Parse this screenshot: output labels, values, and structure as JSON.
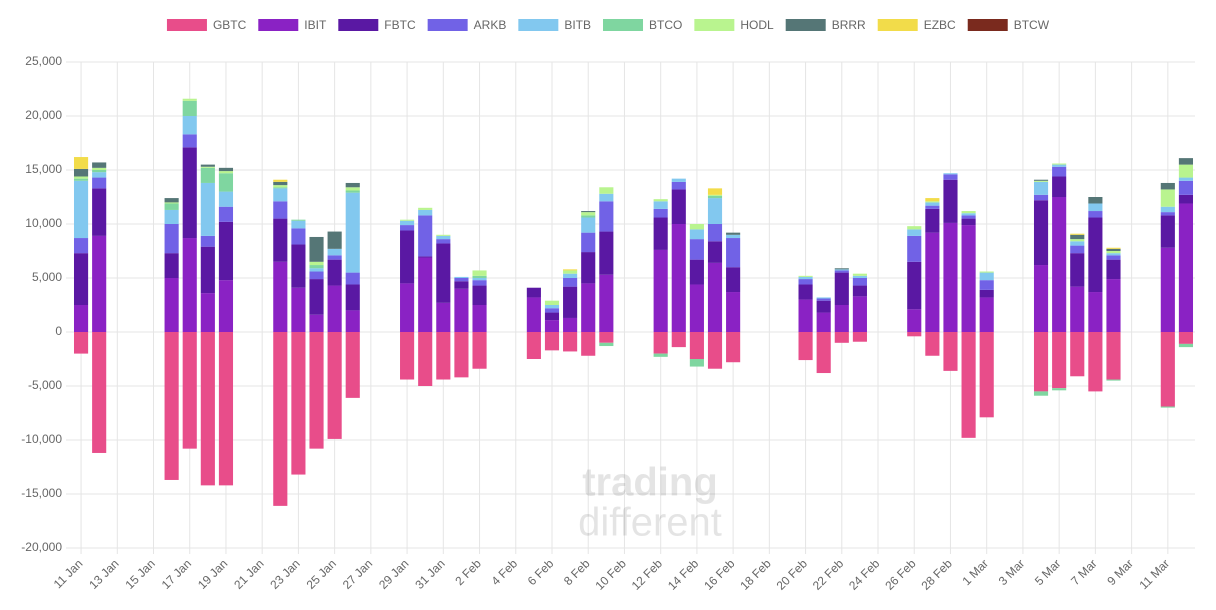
{
  "chart_data": {
    "type": "stacked-bar",
    "watermark": [
      "trading",
      "different"
    ],
    "categories": [
      "11 Jan",
      null,
      "13 Jan",
      null,
      "15 Jan",
      null,
      "17 Jan",
      null,
      "19 Jan",
      null,
      "21 Jan",
      null,
      "23 Jan",
      null,
      "25 Jan",
      null,
      "27 Jan",
      null,
      "29 Jan",
      null,
      "31 Jan",
      null,
      "2 Feb",
      null,
      "4 Feb",
      null,
      "6 Feb",
      null,
      "8 Feb",
      null,
      "10 Feb",
      null,
      "12 Feb",
      null,
      "14 Feb",
      null,
      "16 Feb",
      null,
      "18 Feb",
      null,
      "20 Feb",
      null,
      "22 Feb",
      null,
      "24 Feb",
      null,
      "26 Feb",
      null,
      "28 Feb",
      null,
      "1 Mar",
      null,
      "3 Mar",
      null,
      "5 Mar",
      null,
      "7 Mar",
      null,
      "9 Mar",
      null,
      "11 Mar",
      null
    ],
    "ylim": [
      -20000,
      25000
    ],
    "yticks": [
      {
        "value": -20000,
        "label": "-20,000"
      },
      {
        "value": -15000,
        "label": "-15,000"
      },
      {
        "value": -10000,
        "label": "-10,000"
      },
      {
        "value": -5000,
        "label": "-5,000"
      },
      0,
      {
        "value": 5000,
        "label": "5,000"
      },
      {
        "value": 10000,
        "label": "10,000"
      },
      {
        "value": 15000,
        "label": "15,000"
      },
      {
        "value": 20000,
        "label": "20,000"
      },
      {
        "value": 25000,
        "label": "25,000"
      }
    ],
    "grid": true,
    "legend": "top",
    "series": [
      {
        "name": "GBTC",
        "color": "#e84d8a",
        "values": [
          -2000,
          -11200,
          null,
          null,
          null,
          -13700,
          -10800,
          -14200,
          -14200,
          null,
          null,
          -16100,
          -13200,
          -10800,
          -9900,
          -6100,
          null,
          null,
          -4400,
          -5000,
          -4400,
          -4200,
          -3400,
          null,
          null,
          -2500,
          -1700,
          -1800,
          -2200,
          -1000,
          null,
          null,
          -2000,
          -1400,
          -2500,
          -3400,
          -2800,
          null,
          null,
          null,
          -2600,
          -3800,
          -1000,
          -900,
          null,
          null,
          -400,
          -2200,
          -3600,
          -9800,
          -7900,
          null,
          null,
          -5500,
          -5200,
          -4100,
          -5500,
          -4400,
          null,
          null,
          -6900,
          -1100
        ]
      },
      {
        "name": "IBIT",
        "color": "#8a22c4",
        "values": [
          2500,
          8900,
          null,
          null,
          null,
          5000,
          8700,
          3600,
          4800,
          null,
          null,
          6500,
          4100,
          1600,
          4300,
          2000,
          null,
          null,
          4500,
          6900,
          2700,
          4000,
          2500,
          null,
          null,
          3200,
          1100,
          1300,
          4500,
          5300,
          null,
          null,
          7600,
          10000,
          4400,
          6400,
          3700,
          null,
          null,
          null,
          3000,
          1800,
          2500,
          3300,
          null,
          null,
          2100,
          9200,
          10100,
          9900,
          3200,
          null,
          null,
          6200,
          12500,
          4200,
          3700,
          4900,
          null,
          null,
          7800,
          11900
        ]
      },
      {
        "name": "FBTC",
        "color": "#5a18a3",
        "values": [
          4800,
          4400,
          null,
          null,
          null,
          2300,
          8400,
          4300,
          5400,
          null,
          null,
          4000,
          4000,
          3300,
          2400,
          2400,
          null,
          null,
          4900,
          100,
          5500,
          700,
          1800,
          null,
          null,
          900,
          700,
          2900,
          2900,
          4000,
          null,
          null,
          3000,
          3200,
          2300,
          2000,
          2300,
          null,
          null,
          null,
          1400,
          1100,
          3000,
          1000,
          null,
          null,
          4400,
          2200,
          4000,
          600,
          700,
          null,
          null,
          6000,
          1900,
          3100,
          6900,
          1800,
          null,
          null,
          3000,
          800
        ]
      },
      {
        "name": "ARKB",
        "color": "#7162e6",
        "values": [
          1400,
          1000,
          null,
          null,
          null,
          2700,
          1200,
          1000,
          1400,
          null,
          null,
          1600,
          1500,
          700,
          400,
          1100,
          null,
          null,
          500,
          3800,
          400,
          300,
          500,
          null,
          null,
          0,
          400,
          800,
          1800,
          2800,
          null,
          null,
          800,
          700,
          1900,
          1600,
          2700,
          null,
          null,
          null,
          500,
          200,
          200,
          700,
          null,
          null,
          2400,
          300,
          500,
          300,
          900,
          null,
          null,
          500,
          900,
          700,
          600,
          400,
          null,
          null,
          300,
          1300
        ]
      },
      {
        "name": "BITB",
        "color": "#82c8ef",
        "values": [
          5300,
          500,
          null,
          null,
          null,
          1300,
          1700,
          4900,
          1400,
          null,
          null,
          1200,
          700,
          300,
          600,
          7400,
          null,
          null,
          400,
          500,
          300,
          100,
          200,
          null,
          null,
          0,
          300,
          400,
          1400,
          700,
          null,
          null,
          700,
          300,
          900,
          2400,
          300,
          null,
          null,
          null,
          200,
          100,
          100,
          200,
          null,
          null,
          600,
          300,
          100,
          200,
          700,
          null,
          null,
          1200,
          200,
          400,
          700,
          200,
          null,
          null,
          500,
          300
        ]
      },
      {
        "name": "BTCO",
        "color": "#7fd6a0",
        "values": [
          200,
          200,
          null,
          null,
          null,
          600,
          1400,
          1400,
          1700,
          null,
          null,
          100,
          100,
          300,
          0,
          200,
          null,
          null,
          0,
          0,
          0,
          0,
          200,
          null,
          null,
          0,
          0,
          0,
          200,
          -300,
          null,
          null,
          -300,
          0,
          -700,
          200,
          0,
          null,
          null,
          null,
          0,
          0,
          0,
          0,
          null,
          null,
          0,
          0,
          0,
          0,
          0,
          null,
          null,
          -400,
          -200,
          0,
          0,
          -100,
          null,
          null,
          -100,
          -300
        ]
      },
      {
        "name": "HODL",
        "color": "#b9f48f",
        "values": [
          200,
          200,
          null,
          null,
          null,
          100,
          200,
          100,
          200,
          null,
          null,
          200,
          0,
          300,
          0,
          300,
          null,
          null,
          100,
          200,
          100,
          0,
          500,
          null,
          null,
          0,
          400,
          300,
          300,
          600,
          null,
          null,
          200,
          0,
          500,
          100,
          0,
          null,
          null,
          null,
          100,
          0,
          0,
          200,
          null,
          null,
          300,
          100,
          0,
          200,
          100,
          null,
          null,
          100,
          100,
          200,
          0,
          200,
          null,
          null,
          1600,
          1200
        ]
      },
      {
        "name": "BRRR",
        "color": "#557676",
        "values": [
          700,
          500,
          null,
          null,
          null,
          400,
          0,
          200,
          300,
          null,
          null,
          300,
          0,
          2300,
          1600,
          400,
          null,
          null,
          0,
          0,
          0,
          0,
          0,
          null,
          null,
          0,
          0,
          0,
          100,
          0,
          null,
          null,
          0,
          0,
          0,
          0,
          200,
          null,
          null,
          null,
          0,
          0,
          100,
          0,
          null,
          null,
          0,
          0,
          0,
          0,
          0,
          null,
          null,
          100,
          0,
          400,
          600,
          200,
          null,
          null,
          600,
          600
        ]
      },
      {
        "name": "EZBC",
        "color": "#f2dc4a",
        "values": [
          1100,
          0,
          null,
          null,
          null,
          0,
          0,
          0,
          0,
          null,
          null,
          200,
          0,
          0,
          0,
          0,
          null,
          null,
          0,
          0,
          0,
          0,
          0,
          null,
          null,
          0,
          0,
          100,
          0,
          0,
          null,
          null,
          0,
          0,
          0,
          600,
          0,
          null,
          null,
          null,
          0,
          0,
          0,
          0,
          null,
          null,
          0,
          300,
          0,
          0,
          0,
          null,
          null,
          0,
          0,
          100,
          0,
          100,
          null,
          null,
          0,
          0
        ]
      },
      {
        "name": "BTCW",
        "color": "#7a2a1e",
        "values": [
          0,
          0,
          null,
          null,
          null,
          0,
          0,
          0,
          0,
          null,
          null,
          0,
          0,
          0,
          0,
          0,
          null,
          null,
          0,
          0,
          0,
          0,
          0,
          null,
          null,
          0,
          0,
          0,
          0,
          0,
          null,
          null,
          0,
          0,
          0,
          0,
          0,
          null,
          null,
          null,
          0,
          0,
          0,
          0,
          null,
          null,
          0,
          0,
          0,
          0,
          0,
          null,
          null,
          0,
          0,
          0,
          0,
          0,
          null,
          null,
          0,
          0
        ]
      }
    ]
  }
}
